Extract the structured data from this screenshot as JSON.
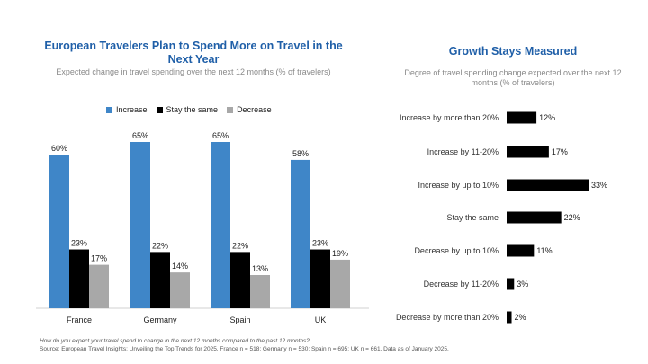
{
  "left_title": "European Travelers Plan to Spend More on Travel in the Next Year",
  "left_subtitle": "Expected change in travel spending over the next 12 months (% of travelers)",
  "right_title": "Growth Stays Measured",
  "right_subtitle": "Degree of travel spending change expected over the next 12 months (% of travelers)",
  "footnote": {
    "question": "How do you expect your travel spend to change in the next 12 months compared to the past 12 months?",
    "source": "Source: European Travel Insights: Unveiling the Top Trends for 2025, France n = 518; Germany n = 530; Spain n = 695; UK n = 661. Data as of January 2025."
  },
  "colors": {
    "increase": "#3f86c8",
    "same": "#000000",
    "decrease": "#a8a8a8",
    "accent": "#1f5fa8"
  },
  "chart_data": [
    {
      "type": "bar",
      "categories": [
        "France",
        "Germany",
        "Spain",
        "UK"
      ],
      "series": [
        {
          "name": "Increase",
          "values": [
            60,
            65,
            65,
            58
          ],
          "labels": [
            "60%",
            "65%",
            "65%",
            "58%"
          ]
        },
        {
          "name": "Stay the same",
          "values": [
            23,
            22,
            22,
            23
          ],
          "labels": [
            "23%",
            "22%",
            "22%",
            "23%"
          ]
        },
        {
          "name": "Decrease",
          "values": [
            17,
            14,
            13,
            19
          ],
          "labels": [
            "17%",
            "14%",
            "13%",
            "19%"
          ]
        }
      ],
      "ylim": [
        0,
        65
      ],
      "legend": "top",
      "grid": false
    },
    {
      "type": "bar",
      "orientation": "horizontal",
      "categories": [
        "Increase by more than 20%",
        "Increase by 11-20%",
        "Increase by up to 10%",
        "Stay the same",
        "Decrease by up to 10%",
        "Decrease by 11-20%",
        "Decrease by more than 20%"
      ],
      "values": [
        12,
        17,
        33,
        22,
        11,
        3,
        2
      ],
      "labels": [
        "12%",
        "17%",
        "33%",
        "22%",
        "11%",
        "3%",
        "2%"
      ],
      "xlim": [
        0,
        33
      ],
      "grid": false
    }
  ]
}
